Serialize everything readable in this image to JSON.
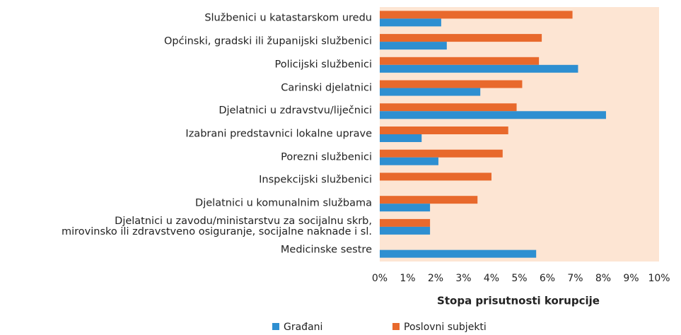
{
  "chart_data": {
    "type": "bar",
    "orientation": "horizontal",
    "x_label": "Stopa prisutnosti korupcije",
    "categories": [
      "Službenici u katastarskom uredu",
      "Općinski, gradski ili županijski službenici",
      "Policijski službenici",
      "Carinski djelatnici",
      "Djelatnici u zdravstvu/liječnici",
      "Izabrani predstavnici lokalne uprave",
      "Porezni službenici",
      "Inspekcijski službenici",
      "Djelatnici u komunalnim službama",
      "Djelatnici u zavodu/ministarstvu za socijalnu skrb,\nmirovinsko ili zdravstveno osiguranje, socijalne naknade i sl.",
      "Medicinske sestre"
    ],
    "series": [
      {
        "name": "Građani",
        "color": "#2e8fd1",
        "values": [
          2.2,
          2.4,
          7.1,
          3.6,
          8.1,
          1.5,
          2.1,
          null,
          1.8,
          1.8,
          5.6
        ]
      },
      {
        "name": "Poslovni subjekti",
        "color": "#e8692c",
        "values": [
          6.9,
          5.8,
          5.7,
          5.1,
          4.9,
          4.6,
          4.4,
          4.0,
          3.5,
          1.8,
          null
        ]
      }
    ],
    "xlim": [
      0,
      10
    ],
    "xticks": [
      {
        "value": 0,
        "label": "0%"
      },
      {
        "value": 1,
        "label": "1%"
      },
      {
        "value": 2,
        "label": "2%"
      },
      {
        "value": 3,
        "label": "3%"
      },
      {
        "value": 4,
        "label": "4%"
      },
      {
        "value": 5,
        "label": "5%"
      },
      {
        "value": 6,
        "label": "6%"
      },
      {
        "value": 7,
        "label": "7%"
      },
      {
        "value": 8,
        "label": "8%"
      },
      {
        "value": 9,
        "label": "9%"
      },
      {
        "value": 10,
        "label": "10%"
      }
    ],
    "plot_background": "#fde5d3",
    "legend": "bottom"
  }
}
